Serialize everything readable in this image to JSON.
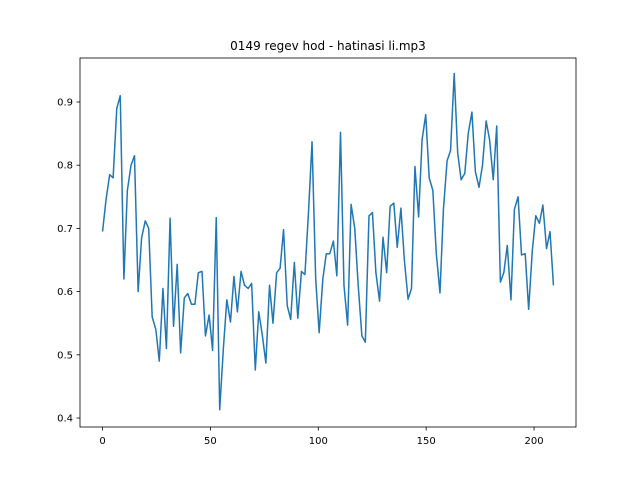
{
  "chart_data": {
    "type": "line",
    "title": "0149 regev hod - hatinasi li.mp3",
    "x": [
      0,
      1.6,
      3.3,
      4.9,
      6.6,
      8.2,
      9.9,
      11.5,
      13.2,
      14.8,
      16.5,
      18.1,
      19.8,
      21.4,
      23.0,
      24.7,
      26.3,
      28.0,
      29.6,
      31.3,
      32.9,
      34.6,
      36.2,
      37.9,
      39.5,
      41.2,
      42.8,
      44.4,
      46.1,
      47.7,
      49.4,
      51.0,
      52.7,
      54.3,
      56.0,
      57.6,
      59.3,
      60.9,
      62.5,
      64.2,
      65.8,
      67.5,
      69.1,
      70.8,
      72.4,
      74.1,
      75.7,
      77.4,
      79.0,
      80.7,
      82.3,
      83.9,
      85.6,
      87.2,
      88.9,
      90.5,
      92.2,
      93.8,
      95.5,
      97.1,
      98.8,
      100.4,
      102.1,
      103.7,
      105.3,
      107.0,
      108.6,
      110.3,
      111.9,
      113.6,
      115.2,
      116.9,
      118.5,
      120.2,
      121.8,
      123.5,
      125.1,
      126.7,
      128.4,
      130.0,
      131.7,
      133.3,
      135.0,
      136.6,
      138.3,
      139.9,
      141.6,
      143.2,
      144.8,
      146.5,
      148.1,
      149.8,
      151.4,
      153.1,
      154.7,
      156.4,
      158.0,
      159.7,
      161.3,
      163.0,
      164.6,
      166.2,
      167.9,
      169.5,
      171.2,
      172.8,
      174.5,
      176.1,
      177.8,
      179.4,
      181.1,
      182.7,
      184.4,
      186.0,
      187.6,
      189.3,
      190.9,
      192.6,
      194.2,
      195.9,
      197.5,
      199.2,
      200.8,
      202.5,
      204.1,
      205.8,
      207.4,
      209.0
    ],
    "series": [
      {
        "color": "#1f77b4",
        "values": [
          0.695,
          0.745,
          0.785,
          0.78,
          0.89,
          0.91,
          0.62,
          0.76,
          0.8,
          0.815,
          0.6,
          0.685,
          0.712,
          0.7,
          0.56,
          0.54,
          0.49,
          0.605,
          0.51,
          0.716,
          0.545,
          0.643,
          0.503,
          0.59,
          0.597,
          0.58,
          0.58,
          0.63,
          0.632,
          0.53,
          0.563,
          0.507,
          0.717,
          0.413,
          0.51,
          0.587,
          0.552,
          0.624,
          0.568,
          0.632,
          0.61,
          0.605,
          0.613,
          0.476,
          0.568,
          0.53,
          0.487,
          0.61,
          0.55,
          0.63,
          0.637,
          0.698,
          0.578,
          0.556,
          0.646,
          0.558,
          0.632,
          0.627,
          0.728,
          0.837,
          0.62,
          0.535,
          0.62,
          0.66,
          0.66,
          0.68,
          0.625,
          0.852,
          0.61,
          0.547,
          0.738,
          0.7,
          0.61,
          0.53,
          0.52,
          0.72,
          0.725,
          0.63,
          0.585,
          0.686,
          0.63,
          0.735,
          0.74,
          0.67,
          0.732,
          0.65,
          0.588,
          0.605,
          0.798,
          0.718,
          0.84,
          0.88,
          0.78,
          0.76,
          0.66,
          0.598,
          0.73,
          0.807,
          0.823,
          0.945,
          0.82,
          0.777,
          0.787,
          0.85,
          0.884,
          0.79,
          0.765,
          0.8,
          0.87,
          0.84,
          0.777,
          0.862,
          0.615,
          0.63,
          0.673,
          0.587,
          0.73,
          0.75,
          0.658,
          0.66,
          0.572,
          0.665,
          0.72,
          0.708,
          0.737,
          0.668,
          0.695,
          0.61
        ]
      }
    ],
    "xlim": [
      -10.45,
      219.45
    ],
    "ylim": [
      0.3858,
      0.9696
    ],
    "xticks": [
      0,
      50,
      100,
      150,
      200
    ],
    "yticks": [
      0.4,
      0.5,
      0.6,
      0.7,
      0.8,
      0.9
    ]
  }
}
